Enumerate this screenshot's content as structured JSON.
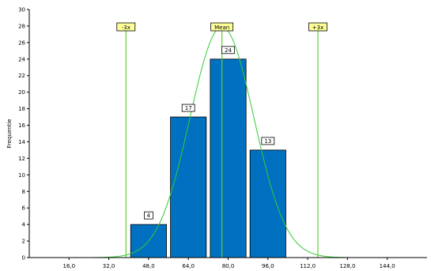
{
  "chart_data": {
    "type": "bar",
    "ylabel": "Frequentie",
    "xlim": [
      0,
      160
    ],
    "ylim": [
      0,
      30
    ],
    "x_ticks": [
      16,
      32,
      48,
      64,
      80,
      96,
      112,
      128,
      144
    ],
    "x_tick_labels": [
      "16,0",
      "32,0",
      "48,0",
      "64,0",
      "80,0",
      "96,0",
      "112,0",
      "128,0",
      "144,0"
    ],
    "y_ticks": [
      0,
      2,
      4,
      6,
      8,
      10,
      12,
      14,
      16,
      18,
      20,
      22,
      24,
      26,
      28,
      30
    ],
    "bins": [
      {
        "x0": 40,
        "x1": 56,
        "value": 4
      },
      {
        "x0": 56,
        "x1": 72,
        "value": 17
      },
      {
        "x0": 72,
        "x1": 88,
        "value": 24
      },
      {
        "x0": 88,
        "x1": 104,
        "value": 13
      }
    ],
    "normal_curve": {
      "mean": 77.5,
      "sd": 12.85,
      "peak": 27.9
    },
    "markers": [
      {
        "label": "-3x",
        "x": 38.9
      },
      {
        "label": "Mean",
        "x": 77.5
      },
      {
        "label": "+3x",
        "x": 116.1
      }
    ],
    "colors": {
      "bar": "#0070c0",
      "curve": "#33cc33",
      "marker": "#66cc33",
      "marker_label_bg": "#ffff99"
    },
    "grid": false
  }
}
